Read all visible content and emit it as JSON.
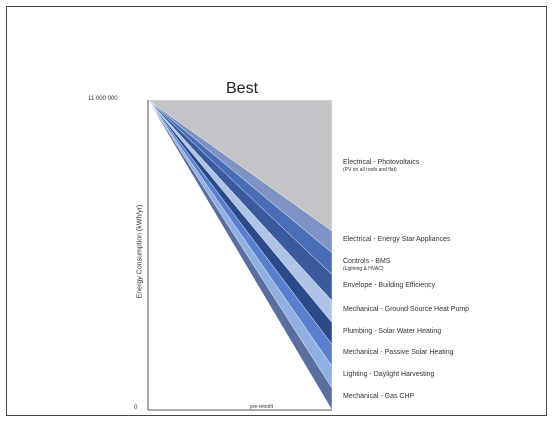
{
  "chart_data": {
    "type": "area",
    "title": "Best",
    "ylabel": "Energy Consumption (kWh/yr)",
    "xlabel": "",
    "x_note": "pre-retrofit",
    "y_tick_labels": [
      "11 000 000",
      "0"
    ],
    "ylim": [
      0,
      11000000
    ],
    "grid": false,
    "series": [
      {
        "name": "Electrical - Photovoltaics",
        "note": "(PV on all roofs and flat)",
        "value": 3.0,
        "color": "#c4c4c8"
      },
      {
        "name": "Electrical - Energy Star Appliances",
        "note": "",
        "value": 0.5,
        "color": "#7e93c4"
      },
      {
        "name": "Controls - BMS",
        "note": "(Lighting & HVAC)",
        "value": 0.5,
        "color": "#4a6db8"
      },
      {
        "name": "Envelope - Building Efficiency",
        "note": "",
        "value": 0.6,
        "color": "#3a5a9e"
      },
      {
        "name": "Mechanical - Ground Source Heat Pump",
        "note": "",
        "value": 0.5,
        "color": "#aec3e6"
      },
      {
        "name": "Plumbing - Solar Water Heating",
        "note": "",
        "value": 0.5,
        "color": "#2a4a8a"
      },
      {
        "name": "Mechanical - Passive Solar Heating",
        "note": "",
        "value": 0.5,
        "color": "#5a7fce"
      },
      {
        "name": "Lighting - Daylight Harvesting",
        "note": "",
        "value": 0.5,
        "color": "#8fb0e0"
      },
      {
        "name": "Mechanical - Gas CHP",
        "note": "",
        "value": 0.5,
        "color": "#5b6ea0"
      }
    ]
  }
}
